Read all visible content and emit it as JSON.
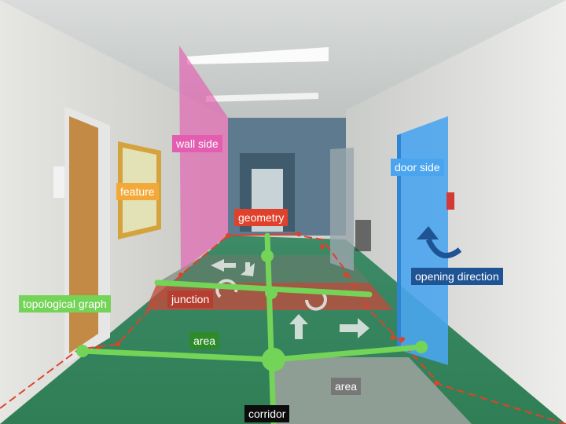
{
  "labels": {
    "wall_side": "wall side",
    "feature": "feature",
    "geometry": "geometry",
    "door_side": "door side",
    "opening_direction": "opening direction",
    "topological_graph": "topological graph",
    "junction": "junction",
    "area_green": "area",
    "area_gray": "area",
    "corridor": "corridor"
  },
  "colors": {
    "wall_side": "#e35db1",
    "feature": "#f3a93a",
    "geometry": "#e0412a",
    "door_side": "#4ba5ee",
    "opening_direction": "#1f5494",
    "topological_graph": "#74d457",
    "junction": "#b53e30",
    "area_green": "#2f8a2b",
    "area_gray": "#777777",
    "corridor": "#0c0c0c"
  }
}
